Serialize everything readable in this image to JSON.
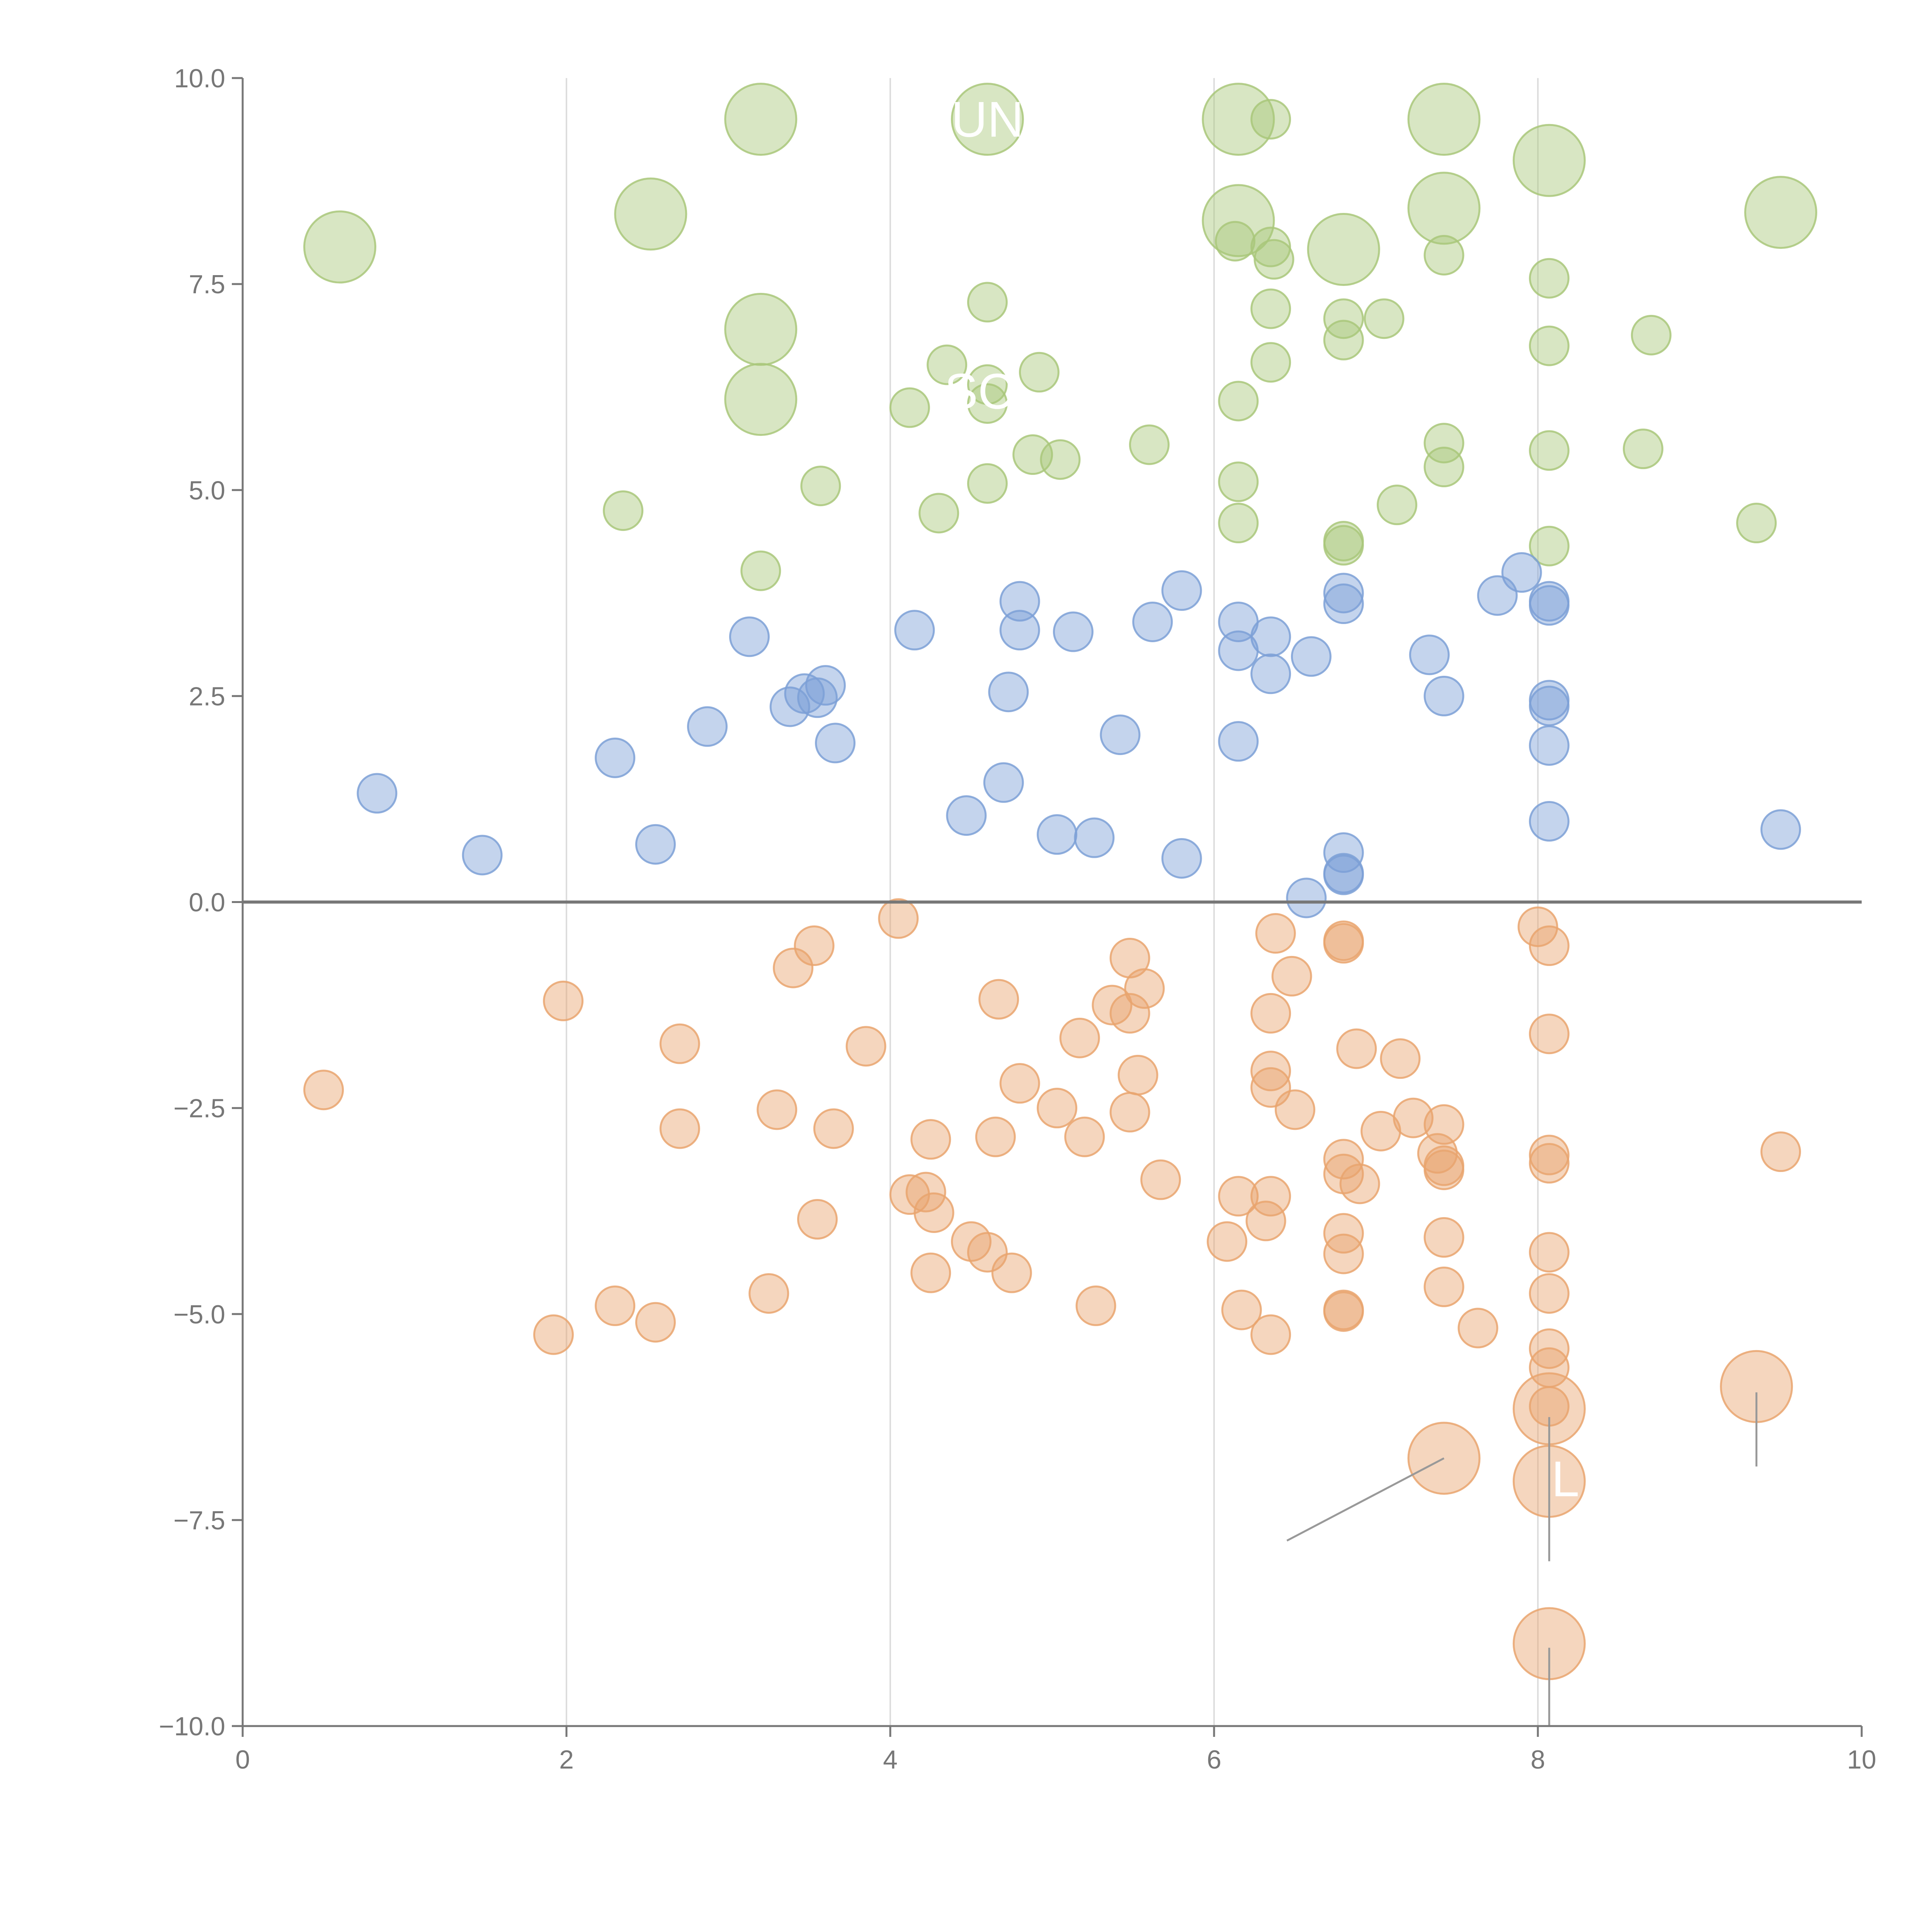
{
  "chart_data": {
    "type": "scatter",
    "title": "",
    "xlabel": "",
    "ylabel": "",
    "xlim": [
      0,
      10
    ],
    "ylim": [
      -10,
      10
    ],
    "x_ticks": [
      0,
      2,
      4,
      6,
      8,
      10
    ],
    "y_ticks": [
      10.0,
      7.5,
      5.0,
      2.5,
      0.0,
      -2.5,
      -5.0,
      -7.5,
      -10.0
    ],
    "x_tick_labels": [
      "0",
      "2",
      "4",
      "6",
      "8",
      "10"
    ],
    "y_tick_labels": [
      "10.0",
      "7.5",
      "5.0",
      "2.5",
      "0.0",
      "−2.5",
      "−5.0",
      "−7.5",
      "−10.0"
    ],
    "vertical_gridlines": [
      2,
      4,
      6,
      8
    ],
    "zero_line": 0,
    "grid": "vertical only",
    "colors": {
      "green": "#a9c77a",
      "blue": "#7da0d6",
      "orange": "#e9a46e",
      "axis": "#777777",
      "grid": "#dddddd"
    },
    "series": [
      {
        "color_key": "green",
        "points": [
          [
            0.6,
            7.95,
            2
          ],
          [
            2.52,
            8.35,
            2
          ],
          [
            3.2,
            9.5,
            2
          ],
          [
            4.6,
            9.5,
            2
          ],
          [
            3.2,
            6.95,
            2
          ],
          [
            3.2,
            6.1,
            2
          ],
          [
            6.15,
            9.5,
            2
          ],
          [
            7.42,
            9.5,
            2
          ],
          [
            8.07,
            9.0,
            2
          ],
          [
            6.15,
            8.27,
            2
          ],
          [
            7.42,
            8.42,
            2
          ],
          [
            6.8,
            7.92,
            2
          ],
          [
            9.5,
            8.37,
            2
          ],
          [
            6.35,
            9.5,
            1
          ],
          [
            6.13,
            8.02,
            1
          ],
          [
            6.35,
            7.95,
            1
          ],
          [
            6.37,
            7.8,
            1
          ],
          [
            7.42,
            7.85,
            1
          ],
          [
            8.07,
            7.57,
            1
          ],
          [
            4.6,
            7.28,
            1
          ],
          [
            6.35,
            7.2,
            1
          ],
          [
            6.8,
            7.08,
            1
          ],
          [
            7.05,
            7.08,
            1
          ],
          [
            6.8,
            6.82,
            1
          ],
          [
            8.07,
            6.75,
            1
          ],
          [
            8.7,
            6.88,
            1
          ],
          [
            4.35,
            6.52,
            1
          ],
          [
            6.35,
            6.55,
            1
          ],
          [
            4.6,
            6.28,
            1
          ],
          [
            4.92,
            6.43,
            1
          ],
          [
            4.6,
            6.05,
            1
          ],
          [
            4.12,
            6.0,
            1
          ],
          [
            6.15,
            6.08,
            1
          ],
          [
            5.6,
            5.55,
            1
          ],
          [
            4.88,
            5.43,
            1
          ],
          [
            5.05,
            5.37,
            1
          ],
          [
            7.42,
            5.57,
            1
          ],
          [
            7.42,
            5.28,
            1
          ],
          [
            8.07,
            5.48,
            1
          ],
          [
            8.65,
            5.5,
            1
          ],
          [
            3.57,
            5.05,
            1
          ],
          [
            4.6,
            5.08,
            1
          ],
          [
            6.15,
            5.1,
            1
          ],
          [
            2.35,
            4.75,
            1
          ],
          [
            4.3,
            4.72,
            1
          ],
          [
            7.13,
            4.82,
            1
          ],
          [
            6.15,
            4.6,
            1
          ],
          [
            9.35,
            4.6,
            1
          ],
          [
            6.8,
            4.38,
            1
          ],
          [
            6.8,
            4.33,
            1
          ],
          [
            8.07,
            4.32,
            1
          ],
          [
            3.2,
            4.02,
            1
          ]
        ]
      },
      {
        "color_key": "blue",
        "points": [
          [
            7.9,
            4.0,
            1
          ],
          [
            5.8,
            3.78,
            1
          ],
          [
            7.75,
            3.72,
            1
          ],
          [
            6.8,
            3.75,
            1
          ],
          [
            6.8,
            3.62,
            1
          ],
          [
            8.07,
            3.65,
            1
          ],
          [
            8.07,
            3.6,
            1
          ],
          [
            4.8,
            3.65,
            1
          ],
          [
            6.15,
            3.4,
            1
          ],
          [
            5.62,
            3.4,
            1
          ],
          [
            4.15,
            3.3,
            1
          ],
          [
            4.8,
            3.3,
            1
          ],
          [
            5.13,
            3.28,
            1
          ],
          [
            3.13,
            3.22,
            1
          ],
          [
            6.35,
            3.22,
            1
          ],
          [
            6.15,
            3.05,
            1
          ],
          [
            6.6,
            2.98,
            1
          ],
          [
            7.33,
            3.0,
            1
          ],
          [
            6.35,
            2.77,
            1
          ],
          [
            3.6,
            2.63,
            1
          ],
          [
            3.47,
            2.53,
            1
          ],
          [
            4.73,
            2.55,
            1
          ],
          [
            3.55,
            2.48,
            1
          ],
          [
            7.42,
            2.5,
            1
          ],
          [
            8.07,
            2.45,
            1
          ],
          [
            8.07,
            2.38,
            1
          ],
          [
            3.38,
            2.37,
            1
          ],
          [
            2.87,
            2.13,
            1
          ],
          [
            5.42,
            2.03,
            1
          ],
          [
            6.15,
            1.95,
            1
          ],
          [
            3.66,
            1.93,
            1
          ],
          [
            8.07,
            1.9,
            1
          ],
          [
            2.3,
            1.75,
            1
          ],
          [
            4.7,
            1.45,
            1
          ],
          [
            0.83,
            1.32,
            1
          ],
          [
            4.47,
            1.05,
            1
          ],
          [
            8.07,
            0.98,
            1
          ],
          [
            9.5,
            0.88,
            1
          ],
          [
            5.03,
            0.82,
            1
          ],
          [
            5.26,
            0.78,
            1
          ],
          [
            2.55,
            0.7,
            1
          ],
          [
            1.48,
            0.57,
            1
          ],
          [
            5.8,
            0.53,
            1
          ],
          [
            6.8,
            0.6,
            1
          ],
          [
            6.8,
            0.35,
            1
          ],
          [
            6.8,
            0.33,
            1
          ],
          [
            6.57,
            0.05,
            1
          ]
        ]
      },
      {
        "color_key": "orange",
        "points": [
          [
            4.05,
            -0.2,
            1
          ],
          [
            8.0,
            -0.3,
            1
          ],
          [
            6.38,
            -0.38,
            1
          ],
          [
            6.8,
            -0.47,
            1
          ],
          [
            6.8,
            -0.5,
            1
          ],
          [
            3.53,
            -0.53,
            1
          ],
          [
            8.07,
            -0.53,
            1
          ],
          [
            5.48,
            -0.68,
            1
          ],
          [
            3.4,
            -0.8,
            1
          ],
          [
            6.48,
            -0.9,
            1
          ],
          [
            5.57,
            -1.05,
            1
          ],
          [
            1.98,
            -1.2,
            1
          ],
          [
            4.67,
            -1.18,
            1
          ],
          [
            5.37,
            -1.25,
            1
          ],
          [
            5.48,
            -1.35,
            1
          ],
          [
            6.35,
            -1.35,
            1
          ],
          [
            8.07,
            -1.6,
            1
          ],
          [
            5.17,
            -1.65,
            1
          ],
          [
            2.7,
            -1.72,
            1
          ],
          [
            3.85,
            -1.75,
            1
          ],
          [
            6.88,
            -1.78,
            1
          ],
          [
            7.15,
            -1.9,
            1
          ],
          [
            6.35,
            -2.05,
            1
          ],
          [
            5.53,
            -2.1,
            1
          ],
          [
            4.8,
            -2.2,
            1
          ],
          [
            6.35,
            -2.25,
            1
          ],
          [
            0.5,
            -2.28,
            1
          ],
          [
            5.03,
            -2.5,
            1
          ],
          [
            3.3,
            -2.52,
            1
          ],
          [
            5.48,
            -2.55,
            1
          ],
          [
            6.5,
            -2.52,
            1
          ],
          [
            7.23,
            -2.62,
            1
          ],
          [
            7.42,
            -2.7,
            1
          ],
          [
            2.7,
            -2.75,
            1
          ],
          [
            3.65,
            -2.75,
            1
          ],
          [
            7.03,
            -2.78,
            1
          ],
          [
            4.25,
            -2.88,
            1
          ],
          [
            4.65,
            -2.85,
            1
          ],
          [
            5.2,
            -2.85,
            1
          ],
          [
            9.5,
            -3.03,
            1
          ],
          [
            8.07,
            -3.07,
            1
          ],
          [
            6.8,
            -3.12,
            1
          ],
          [
            7.38,
            -3.05,
            1
          ],
          [
            7.42,
            -3.2,
            1
          ],
          [
            8.07,
            -3.17,
            1
          ],
          [
            7.42,
            -3.25,
            1
          ],
          [
            5.67,
            -3.37,
            1
          ],
          [
            6.8,
            -3.3,
            1
          ],
          [
            6.9,
            -3.42,
            1
          ],
          [
            4.12,
            -3.55,
            1
          ],
          [
            4.22,
            -3.52,
            1
          ],
          [
            6.15,
            -3.57,
            1
          ],
          [
            6.35,
            -3.57,
            1
          ],
          [
            4.27,
            -3.77,
            1
          ],
          [
            3.55,
            -3.85,
            1
          ],
          [
            6.32,
            -3.87,
            1
          ],
          [
            6.8,
            -4.02,
            1
          ],
          [
            6.08,
            -4.12,
            1
          ],
          [
            4.5,
            -4.12,
            1
          ],
          [
            7.42,
            -4.07,
            1
          ],
          [
            4.6,
            -4.25,
            1
          ],
          [
            6.8,
            -4.27,
            1
          ],
          [
            8.07,
            -4.25,
            1
          ],
          [
            4.25,
            -4.5,
            1
          ],
          [
            4.75,
            -4.5,
            1
          ],
          [
            3.25,
            -4.75,
            1
          ],
          [
            7.42,
            -4.67,
            1
          ],
          [
            8.07,
            -4.75,
            1
          ],
          [
            2.3,
            -4.9,
            1
          ],
          [
            5.27,
            -4.9,
            1
          ],
          [
            6.8,
            -4.95,
            1
          ],
          [
            6.8,
            -4.97,
            1
          ],
          [
            6.17,
            -4.95,
            1
          ],
          [
            2.55,
            -5.1,
            1
          ],
          [
            1.92,
            -5.25,
            1
          ],
          [
            6.35,
            -5.25,
            1
          ],
          [
            7.63,
            -5.17,
            1
          ],
          [
            8.07,
            -5.42,
            1
          ],
          [
            8.07,
            -5.65,
            1
          ],
          [
            8.07,
            -6.12,
            1
          ],
          [
            9.35,
            -5.88,
            2
          ],
          [
            8.07,
            -6.15,
            2
          ],
          [
            7.42,
            -6.75,
            2
          ],
          [
            8.07,
            -7.03,
            2
          ],
          [
            8.07,
            -9.0,
            2
          ]
        ]
      }
    ],
    "labels": [
      {
        "text": "UN",
        "x": 4.6,
        "y": 9.5
      },
      {
        "text": "SC",
        "x": 4.55,
        "y": 6.2
      },
      {
        "text": "L",
        "x": 8.17,
        "y": -7.0
      }
    ]
  }
}
